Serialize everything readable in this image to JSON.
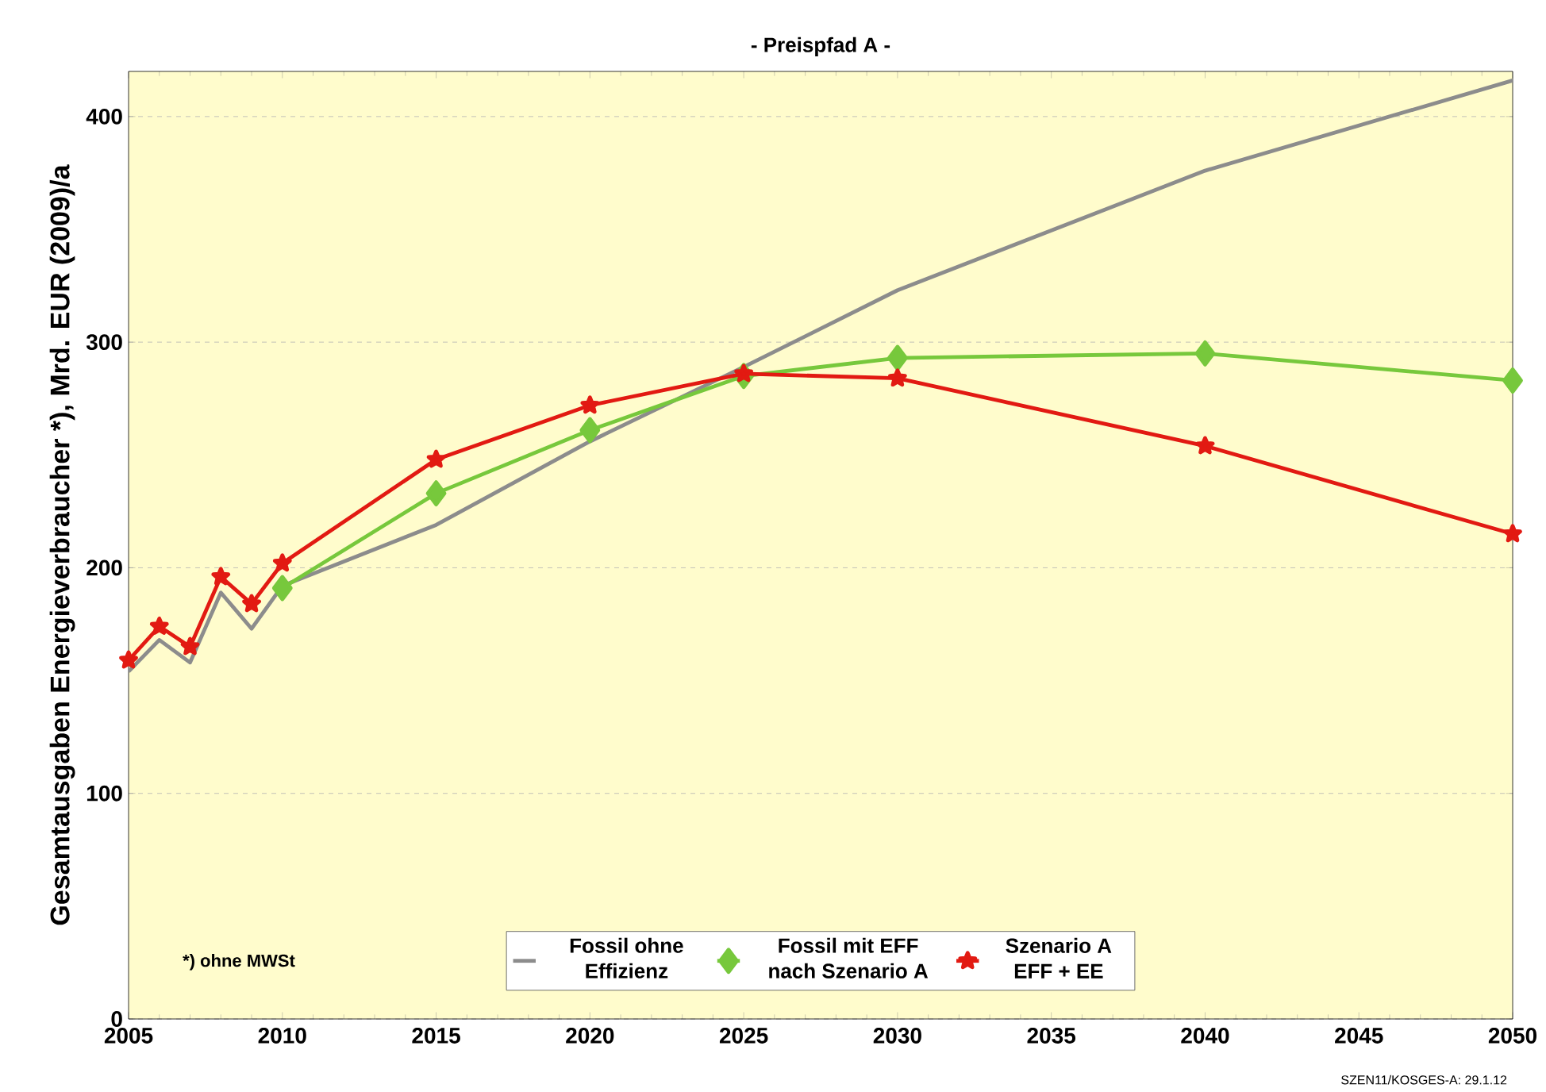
{
  "chart_data": {
    "type": "line",
    "title": "- Preispfad A -",
    "ylabel": "Gesamtausgaben Energieverbraucher *),  Mrd. EUR (2009)/a",
    "xlim": [
      2005,
      2050
    ],
    "xticks": [
      2005,
      2010,
      2015,
      2020,
      2025,
      2030,
      2035,
      2040,
      2045,
      2050
    ],
    "ylim": [
      0,
      420
    ],
    "yticks": [
      0,
      100,
      200,
      300,
      400
    ],
    "grid": "y",
    "legend": "bottom",
    "annotations": [
      "*) ohne MWSt",
      "SZEN11/KOSGES-A: 29.1.12"
    ],
    "series": [
      {
        "name": "Fossil ohne Effizienz",
        "color": "#8c8c8c",
        "marker": "none",
        "x": [
          2005,
          2006,
          2007,
          2008,
          2009,
          2010,
          2015,
          2020,
          2025,
          2030,
          2040,
          2050
        ],
        "values": [
          154,
          168,
          158,
          189,
          173,
          192,
          219,
          256,
          289,
          323,
          376,
          416
        ]
      },
      {
        "name": "Fossil mit EFF nach Szenario A",
        "color": "#77c83c",
        "marker": "diamond",
        "x": [
          2010,
          2015,
          2020,
          2025,
          2030,
          2040,
          2050
        ],
        "values": [
          191,
          233,
          261,
          285,
          293,
          295,
          283
        ]
      },
      {
        "name": "Szenario A EFF + EE",
        "color": "#e21a12",
        "marker": "star",
        "x": [
          2005,
          2006,
          2007,
          2008,
          2009,
          2010,
          2015,
          2020,
          2025,
          2030,
          2040,
          2050
        ],
        "values": [
          159,
          174,
          165,
          196,
          184,
          202,
          248,
          272,
          286,
          284,
          254,
          215
        ]
      }
    ]
  }
}
